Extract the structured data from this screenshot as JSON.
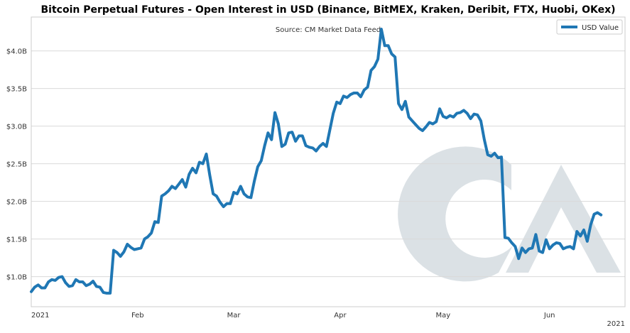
{
  "chart_data": {
    "type": "line",
    "title": "Bitcoin Perpetual Futures - Open Interest in USD (Binance, BitMEX, Kraken, Deribit, FTX, Huobi, OKex)",
    "annotation": "Source: CM Market Data Feed",
    "watermark": "CM",
    "xlabel": "",
    "ylabel": "",
    "x_range": [
      "2021-01-01",
      "2021-06-23"
    ],
    "ylim": [
      0.6,
      4.45
    ],
    "grid": true,
    "legend_position": "top-right",
    "x_ticks": [
      {
        "date": "2021-01-01",
        "label": "2021"
      },
      {
        "date": "2021-02-01",
        "label": "Feb"
      },
      {
        "date": "2021-03-01",
        "label": "Mar"
      },
      {
        "date": "2021-04-01",
        "label": "Apr"
      },
      {
        "date": "2021-05-01",
        "label": "May"
      },
      {
        "date": "2021-06-01",
        "label": "Jun"
      }
    ],
    "x_tick_secondary": "2021",
    "y_ticks": [
      {
        "value": 1.0,
        "label": "$1.0B"
      },
      {
        "value": 1.5,
        "label": "$1.5B"
      },
      {
        "value": 2.0,
        "label": "$2.0B"
      },
      {
        "value": 2.5,
        "label": "$2.5B"
      },
      {
        "value": 3.0,
        "label": "$3.0B"
      },
      {
        "value": 3.5,
        "label": "$3.5B"
      },
      {
        "value": 4.0,
        "label": "$4.0B"
      }
    ],
    "series": [
      {
        "name": "USD Value",
        "color": "#1f77b4",
        "points": [
          [
            "2021-01-01",
            0.8
          ],
          [
            "2021-01-02",
            0.86
          ],
          [
            "2021-01-03",
            0.89
          ],
          [
            "2021-01-04",
            0.85
          ],
          [
            "2021-01-05",
            0.85
          ],
          [
            "2021-01-06",
            0.93
          ],
          [
            "2021-01-07",
            0.96
          ],
          [
            "2021-01-08",
            0.95
          ],
          [
            "2021-01-09",
            0.99
          ],
          [
            "2021-01-10",
            1.0
          ],
          [
            "2021-01-11",
            0.92
          ],
          [
            "2021-01-12",
            0.87
          ],
          [
            "2021-01-13",
            0.88
          ],
          [
            "2021-01-14",
            0.96
          ],
          [
            "2021-01-15",
            0.93
          ],
          [
            "2021-01-16",
            0.93
          ],
          [
            "2021-01-17",
            0.88
          ],
          [
            "2021-01-18",
            0.9
          ],
          [
            "2021-01-19",
            0.94
          ],
          [
            "2021-01-20",
            0.87
          ],
          [
            "2021-01-21",
            0.86
          ],
          [
            "2021-01-22",
            0.79
          ],
          [
            "2021-01-23",
            0.78
          ],
          [
            "2021-01-24",
            0.78
          ],
          [
            "2021-01-25",
            1.35
          ],
          [
            "2021-01-26",
            1.32
          ],
          [
            "2021-01-27",
            1.27
          ],
          [
            "2021-01-28",
            1.33
          ],
          [
            "2021-01-29",
            1.43
          ],
          [
            "2021-01-30",
            1.39
          ],
          [
            "2021-01-31",
            1.36
          ],
          [
            "2021-02-01",
            1.37
          ],
          [
            "2021-02-02",
            1.38
          ],
          [
            "2021-02-03",
            1.5
          ],
          [
            "2021-02-04",
            1.53
          ],
          [
            "2021-02-05",
            1.58
          ],
          [
            "2021-02-06",
            1.73
          ],
          [
            "2021-02-07",
            1.72
          ],
          [
            "2021-02-08",
            2.07
          ],
          [
            "2021-02-09",
            2.1
          ],
          [
            "2021-02-10",
            2.14
          ],
          [
            "2021-02-11",
            2.2
          ],
          [
            "2021-02-12",
            2.17
          ],
          [
            "2021-02-13",
            2.23
          ],
          [
            "2021-02-14",
            2.29
          ],
          [
            "2021-02-15",
            2.19
          ],
          [
            "2021-02-16",
            2.36
          ],
          [
            "2021-02-17",
            2.44
          ],
          [
            "2021-02-18",
            2.38
          ],
          [
            "2021-02-19",
            2.52
          ],
          [
            "2021-02-20",
            2.5
          ],
          [
            "2021-02-21",
            2.63
          ],
          [
            "2021-02-22",
            2.35
          ],
          [
            "2021-02-23",
            2.1
          ],
          [
            "2021-02-24",
            2.07
          ],
          [
            "2021-02-25",
            1.99
          ],
          [
            "2021-02-26",
            1.93
          ],
          [
            "2021-02-27",
            1.97
          ],
          [
            "2021-02-28",
            1.97
          ],
          [
            "2021-03-01",
            2.12
          ],
          [
            "2021-03-02",
            2.1
          ],
          [
            "2021-03-03",
            2.2
          ],
          [
            "2021-03-04",
            2.1
          ],
          [
            "2021-03-05",
            2.06
          ],
          [
            "2021-03-06",
            2.05
          ],
          [
            "2021-03-07",
            2.27
          ],
          [
            "2021-03-08",
            2.46
          ],
          [
            "2021-03-09",
            2.54
          ],
          [
            "2021-03-10",
            2.74
          ],
          [
            "2021-03-11",
            2.91
          ],
          [
            "2021-03-12",
            2.82
          ],
          [
            "2021-03-13",
            3.18
          ],
          [
            "2021-03-14",
            3.03
          ],
          [
            "2021-03-15",
            2.73
          ],
          [
            "2021-03-16",
            2.76
          ],
          [
            "2021-03-17",
            2.91
          ],
          [
            "2021-03-18",
            2.92
          ],
          [
            "2021-03-19",
            2.8
          ],
          [
            "2021-03-20",
            2.87
          ],
          [
            "2021-03-21",
            2.87
          ],
          [
            "2021-03-22",
            2.74
          ],
          [
            "2021-03-23",
            2.72
          ],
          [
            "2021-03-24",
            2.71
          ],
          [
            "2021-03-25",
            2.67
          ],
          [
            "2021-03-26",
            2.73
          ],
          [
            "2021-03-27",
            2.77
          ],
          [
            "2021-03-28",
            2.73
          ],
          [
            "2021-03-29",
            2.95
          ],
          [
            "2021-03-30",
            3.17
          ],
          [
            "2021-03-31",
            3.32
          ],
          [
            "2021-04-01",
            3.3
          ],
          [
            "2021-04-02",
            3.4
          ],
          [
            "2021-04-03",
            3.38
          ],
          [
            "2021-04-04",
            3.42
          ],
          [
            "2021-04-05",
            3.44
          ],
          [
            "2021-04-06",
            3.44
          ],
          [
            "2021-04-07",
            3.39
          ],
          [
            "2021-04-08",
            3.48
          ],
          [
            "2021-04-09",
            3.52
          ],
          [
            "2021-04-10",
            3.74
          ],
          [
            "2021-04-11",
            3.79
          ],
          [
            "2021-04-12",
            3.89
          ],
          [
            "2021-04-13",
            4.29
          ],
          [
            "2021-04-14",
            4.07
          ],
          [
            "2021-04-15",
            4.07
          ],
          [
            "2021-04-16",
            3.96
          ],
          [
            "2021-04-17",
            3.92
          ],
          [
            "2021-04-18",
            3.3
          ],
          [
            "2021-04-19",
            3.22
          ],
          [
            "2021-04-20",
            3.33
          ],
          [
            "2021-04-21",
            3.12
          ],
          [
            "2021-04-22",
            3.07
          ],
          [
            "2021-04-23",
            3.02
          ],
          [
            "2021-04-24",
            2.97
          ],
          [
            "2021-04-25",
            2.94
          ],
          [
            "2021-04-26",
            2.99
          ],
          [
            "2021-04-27",
            3.05
          ],
          [
            "2021-04-28",
            3.03
          ],
          [
            "2021-04-29",
            3.06
          ],
          [
            "2021-04-30",
            3.23
          ],
          [
            "2021-05-01",
            3.13
          ],
          [
            "2021-05-02",
            3.11
          ],
          [
            "2021-05-03",
            3.14
          ],
          [
            "2021-05-04",
            3.12
          ],
          [
            "2021-05-05",
            3.17
          ],
          [
            "2021-05-06",
            3.18
          ],
          [
            "2021-05-07",
            3.21
          ],
          [
            "2021-05-08",
            3.17
          ],
          [
            "2021-05-09",
            3.1
          ],
          [
            "2021-05-10",
            3.16
          ],
          [
            "2021-05-11",
            3.15
          ],
          [
            "2021-05-12",
            3.07
          ],
          [
            "2021-05-13",
            2.82
          ],
          [
            "2021-05-14",
            2.62
          ],
          [
            "2021-05-15",
            2.6
          ],
          [
            "2021-05-16",
            2.64
          ],
          [
            "2021-05-17",
            2.58
          ],
          [
            "2021-05-18",
            2.59
          ],
          [
            "2021-05-19",
            1.52
          ],
          [
            "2021-05-20",
            1.51
          ],
          [
            "2021-05-21",
            1.45
          ],
          [
            "2021-05-22",
            1.4
          ],
          [
            "2021-05-23",
            1.24
          ],
          [
            "2021-05-24",
            1.38
          ],
          [
            "2021-05-25",
            1.32
          ],
          [
            "2021-05-26",
            1.37
          ],
          [
            "2021-05-27",
            1.38
          ],
          [
            "2021-05-28",
            1.56
          ],
          [
            "2021-05-29",
            1.34
          ],
          [
            "2021-05-30",
            1.32
          ],
          [
            "2021-05-31",
            1.49
          ],
          [
            "2021-06-01",
            1.37
          ],
          [
            "2021-06-02",
            1.42
          ],
          [
            "2021-06-03",
            1.45
          ],
          [
            "2021-06-04",
            1.44
          ],
          [
            "2021-06-05",
            1.37
          ],
          [
            "2021-06-06",
            1.39
          ],
          [
            "2021-06-07",
            1.4
          ],
          [
            "2021-06-08",
            1.37
          ],
          [
            "2021-06-09",
            1.6
          ],
          [
            "2021-06-10",
            1.54
          ],
          [
            "2021-06-11",
            1.62
          ],
          [
            "2021-06-12",
            1.47
          ],
          [
            "2021-06-13",
            1.69
          ],
          [
            "2021-06-14",
            1.83
          ],
          [
            "2021-06-15",
            1.85
          ],
          [
            "2021-06-16",
            1.82
          ]
        ]
      }
    ]
  }
}
